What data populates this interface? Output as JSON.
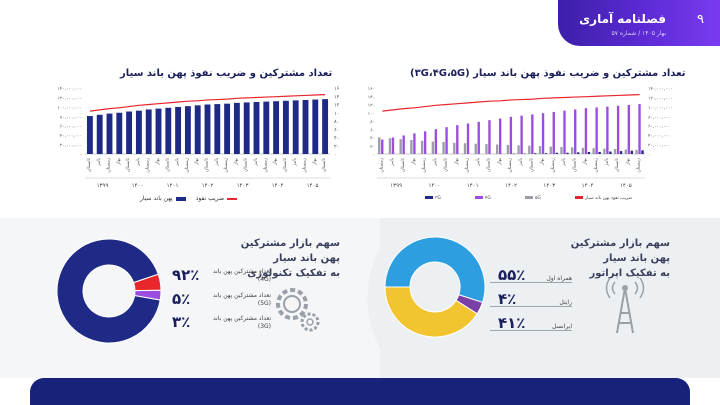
{
  "header": {
    "logo_title": "فصلنامه آماری",
    "issue": "بهار ۱۴۰۵ / شماره ۵۷",
    "page_number": "۹"
  },
  "colors": {
    "navy": "#1f2a87",
    "red": "#e8262c",
    "purple": "#9b4de0",
    "grey": "#9a9ea8",
    "blue": "#2d9ee0",
    "yellow": "#f2c530",
    "dark_purple": "#7b3fa8"
  },
  "chart_data": [
    {
      "type": "bar",
      "title": "تعداد مشترکین و ضریب نفوذ پهن باند سیار",
      "series": [
        {
          "name": "پهن باند سیار",
          "values": [
            92,
            95,
            98,
            100,
            103,
            105,
            108,
            110,
            112,
            114,
            116,
            118,
            120,
            121,
            122,
            124,
            125,
            126,
            127,
            128,
            129,
            130,
            131,
            132,
            133
          ]
        },
        {
          "name": "ضریب نفوذ",
          "values": [
            104,
            107,
            110,
            112,
            115,
            118,
            120,
            122,
            124,
            126,
            128,
            129,
            131,
            132,
            133,
            135,
            136,
            137,
            138,
            139,
            140,
            141,
            142,
            143,
            144
          ]
        }
      ],
      "left_axis_ticks": [
        "۱۴۰,۰۰۰,۰۰۰",
        "۱۲۰,۰۰۰,۰۰۰",
        "۱۰۰,۰۰۰,۰۰۰",
        "۸۰,۰۰۰,۰۰۰",
        "۶۰,۰۰۰,۰۰۰",
        "۴۰,۰۰۰,۰۰۰",
        "۲۰,۰۰۰,۰۰۰",
        "۰"
      ],
      "right_axis_ticks": [
        "۱۶۰",
        "۱۴۰",
        "۱۲۰",
        "۱۰۰",
        "۸۰",
        "۶۰",
        "۴۰",
        "۲۰",
        "۰"
      ],
      "season_labels": [
        "تابستان",
        "پاییز",
        "زمستان",
        "بهار"
      ],
      "years": [
        "۱۳۹۹",
        "۱۴۰۰",
        "۱۴۰۱",
        "۱۴۰۲",
        "۱۴۰۳",
        "۱۴۰۴",
        "۱۴۰۵"
      ],
      "ylim": [
        0,
        160
      ]
    },
    {
      "type": "bar",
      "title": "تعداد مشترکین و ضریب نفوذ پهن باند سیار (۳G،۴G،۵G)",
      "series": [
        {
          "name": "۳G",
          "values": [
            40,
            38,
            36,
            34,
            32,
            30,
            29,
            27,
            26,
            25,
            24,
            23,
            22,
            21,
            20,
            19,
            18,
            17,
            16,
            15,
            14,
            13,
            12,
            11,
            10
          ]
        },
        {
          "name": "۴G",
          "values": [
            35,
            40,
            45,
            50,
            55,
            60,
            65,
            70,
            74,
            78,
            82,
            86,
            90,
            93,
            96,
            99,
            102,
            105,
            108,
            111,
            113,
            115,
            117,
            119,
            121
          ]
        },
        {
          "name": "۵G",
          "values": [
            0,
            0,
            0,
            0,
            0,
            0,
            0,
            0,
            0,
            0,
            0,
            0,
            1,
            1,
            2,
            2,
            3,
            3,
            4,
            5,
            5,
            6,
            7,
            8,
            9
          ]
        },
        {
          "name": "ضریب نفوذ پهن باند سیار",
          "values": [
            104,
            107,
            110,
            112,
            115,
            118,
            120,
            122,
            124,
            126,
            128,
            129,
            131,
            132,
            133,
            135,
            136,
            137,
            138,
            139,
            140,
            141,
            142,
            143,
            144
          ]
        }
      ],
      "left_axis_ticks": [
        "۱۶۰",
        "۱۴۰",
        "۱۲۰",
        "۱۰۰",
        "۸۰",
        "۶۰",
        "۴۰",
        "۲۰",
        "۰"
      ],
      "right_axis_ticks": [
        "۱۴۰,۰۰۰,۰۰۰",
        "۱۲۰,۰۰۰,۰۰۰",
        "۱۰۰,۰۰۰,۰۰۰",
        "۸۰,۰۰۰,۰۰۰",
        "۶۰,۰۰۰,۰۰۰",
        "۴۰,۰۰۰,۰۰۰",
        "۲۰,۰۰۰,۰۰۰",
        "۰"
      ],
      "season_labels": [
        "زمستان",
        "پاییز",
        "تابستان",
        "بهار"
      ],
      "years": [
        "۱۳۹۹",
        "۱۴۰۰",
        "۱۴۰۱",
        "۱۴۰۲",
        "۱۴۰۳",
        "۱۴۰۴",
        "۱۴۰۵"
      ],
      "ylim": [
        0,
        160
      ]
    },
    {
      "type": "pie",
      "title": "سهم بازار مشترکین پهن باند سیار به تفکیک تکنولوژی",
      "slices": [
        {
          "label": "تعداد مشترکین پهن باند (4G)",
          "value": 92,
          "pct_text": "۹۲٪",
          "color": "#1f2a87"
        },
        {
          "label": "تعداد مشترکین پهن باند (5G)",
          "value": 5,
          "pct_text": "۵٪",
          "color": "#e8262c"
        },
        {
          "label": "تعداد مشترکین پهن باند (3G)",
          "value": 3,
          "pct_text": "۳٪",
          "color": "#9b4de0"
        }
      ]
    },
    {
      "type": "pie",
      "title": "سهم بازار مشترکین پهن باند سیار به تفکیک اپراتور",
      "slices": [
        {
          "label": "همراه اول",
          "value": 55,
          "pct_text": "۵۵٪",
          "color": "#2d9ee0"
        },
        {
          "label": "رایتل",
          "value": 4,
          "pct_text": "۴٪",
          "color": "#7b3fa8"
        },
        {
          "label": "ایرانسل",
          "value": 41,
          "pct_text": "۴۱٪",
          "color": "#f2c530"
        }
      ]
    }
  ],
  "sections": {
    "tech_title_line1": "سهم بازار مشترکین پهن باند سیار",
    "tech_title_line2": "به تفکیک تکنولوژی",
    "op_title_line1": "سهم بازار مشترکین پهن باند سیار",
    "op_title_line2": "به تفکیک اپراتور"
  },
  "left_legend": {
    "bar": "پهن باند سیار",
    "line": "ضریب نفوذ"
  }
}
